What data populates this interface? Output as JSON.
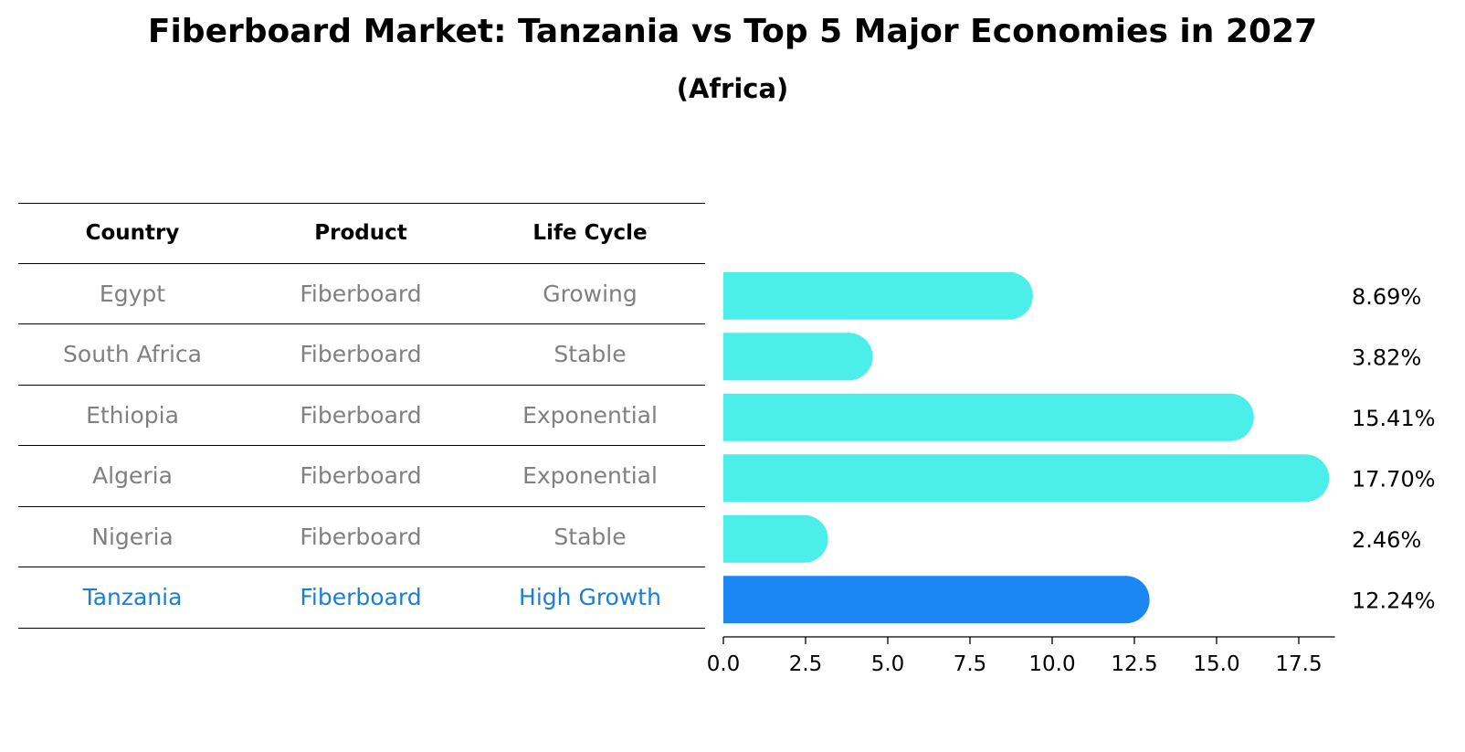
{
  "title": "Fiberboard Market: Tanzania vs Top 5 Major Economies in 2027",
  "subtitle": "(Africa)",
  "table": {
    "headers": [
      "Country",
      "Product",
      "Life Cycle"
    ],
    "rows": [
      {
        "country": "Egypt",
        "product": "Fiberboard",
        "life_cycle": "Growing"
      },
      {
        "country": "South Africa",
        "product": "Fiberboard",
        "life_cycle": "Stable"
      },
      {
        "country": "Ethiopia",
        "product": "Fiberboard",
        "life_cycle": "Exponential"
      },
      {
        "country": "Algeria",
        "product": "Fiberboard",
        "life_cycle": "Exponential"
      },
      {
        "country": "Nigeria",
        "product": "Fiberboard",
        "life_cycle": "Stable"
      },
      {
        "country": "Tanzania",
        "product": "Fiberboard",
        "life_cycle": "High Growth"
      }
    ]
  },
  "colors": {
    "bar": "#4ceeea",
    "highlight_bar": "#1a87f5",
    "highlight_text": "#1a80d4",
    "muted_text": "#808080"
  },
  "chart_data": {
    "type": "bar",
    "orientation": "horizontal",
    "categories": [
      "Egypt",
      "South Africa",
      "Ethiopia",
      "Algeria",
      "Nigeria",
      "Tanzania"
    ],
    "values": [
      8.69,
      3.82,
      15.41,
      17.7,
      2.46,
      12.24
    ],
    "value_labels": [
      "8.69%",
      "3.82%",
      "15.41%",
      "17.70%",
      "2.46%",
      "12.24%"
    ],
    "highlight": "Tanzania",
    "xlim": [
      0,
      18.6
    ],
    "xticks": [
      0,
      2.5,
      5,
      7.5,
      10,
      12.5,
      15,
      17.5
    ],
    "xtick_labels": [
      "0.0",
      "2.5",
      "5.0",
      "7.5",
      "10.0",
      "12.5",
      "15.0",
      "17.5"
    ],
    "xlabel": "",
    "ylabel": "",
    "grid": false
  }
}
